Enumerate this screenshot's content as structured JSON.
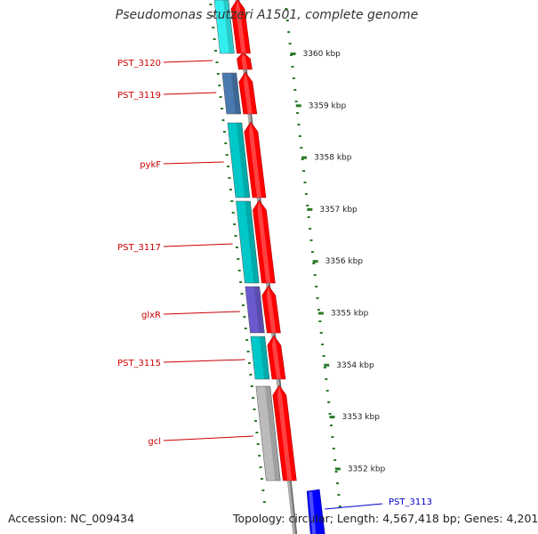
{
  "title": "Pseudomonas stutzeri A1501, complete genome",
  "footer": {
    "accession": "Accession: NC_009434",
    "summary": "Topology: circular; Length: 4,567,418 bp; Genes: 4,201"
  },
  "colors": {
    "cds": "#ff0000",
    "gene_cyan": "#00c8c8",
    "gene_light_cyan": "#33eeee",
    "gene_steelblue": "#4a7ab0",
    "gene_violet": "#6a5acd",
    "gene_gray": "#bbbbbb",
    "label_red": "#cc0000",
    "label_blue": "#0000cc",
    "backbone": "#888888",
    "tick_green": "#2a7a2a",
    "highlight_blue": "#0000ff"
  },
  "scale": {
    "unit": "kbp",
    "ticks": [
      {
        "kbp": 3360,
        "label": "3360 kbp"
      },
      {
        "kbp": 3359,
        "label": "3359 kbp"
      },
      {
        "kbp": 3358,
        "label": "3358 kbp"
      },
      {
        "kbp": 3357,
        "label": "3357 kbp"
      },
      {
        "kbp": 3356,
        "label": "3356 kbp"
      },
      {
        "kbp": 3355,
        "label": "3355 kbp"
      },
      {
        "kbp": 3354,
        "label": "3354 kbp"
      },
      {
        "kbp": 3353,
        "label": "3353 kbp"
      },
      {
        "kbp": 3352,
        "label": "3352 kbp"
      }
    ]
  },
  "genes": [
    {
      "label": "",
      "color": "gene_light_cyan"
    },
    {
      "label": "PST_3120",
      "color": ""
    },
    {
      "label": "PST_3119",
      "color": "gene_steelblue"
    },
    {
      "label": "pykF",
      "color": "gene_cyan"
    },
    {
      "label": "PST_3117",
      "color": "gene_cyan"
    },
    {
      "label": "glxR",
      "color": "gene_violet"
    },
    {
      "label": "PST_3115",
      "color": "gene_cyan"
    },
    {
      "label": "gcl",
      "color": "gene_gray"
    }
  ],
  "highlighted_gene": {
    "label": "PST_3113",
    "color": "highlight_blue"
  }
}
